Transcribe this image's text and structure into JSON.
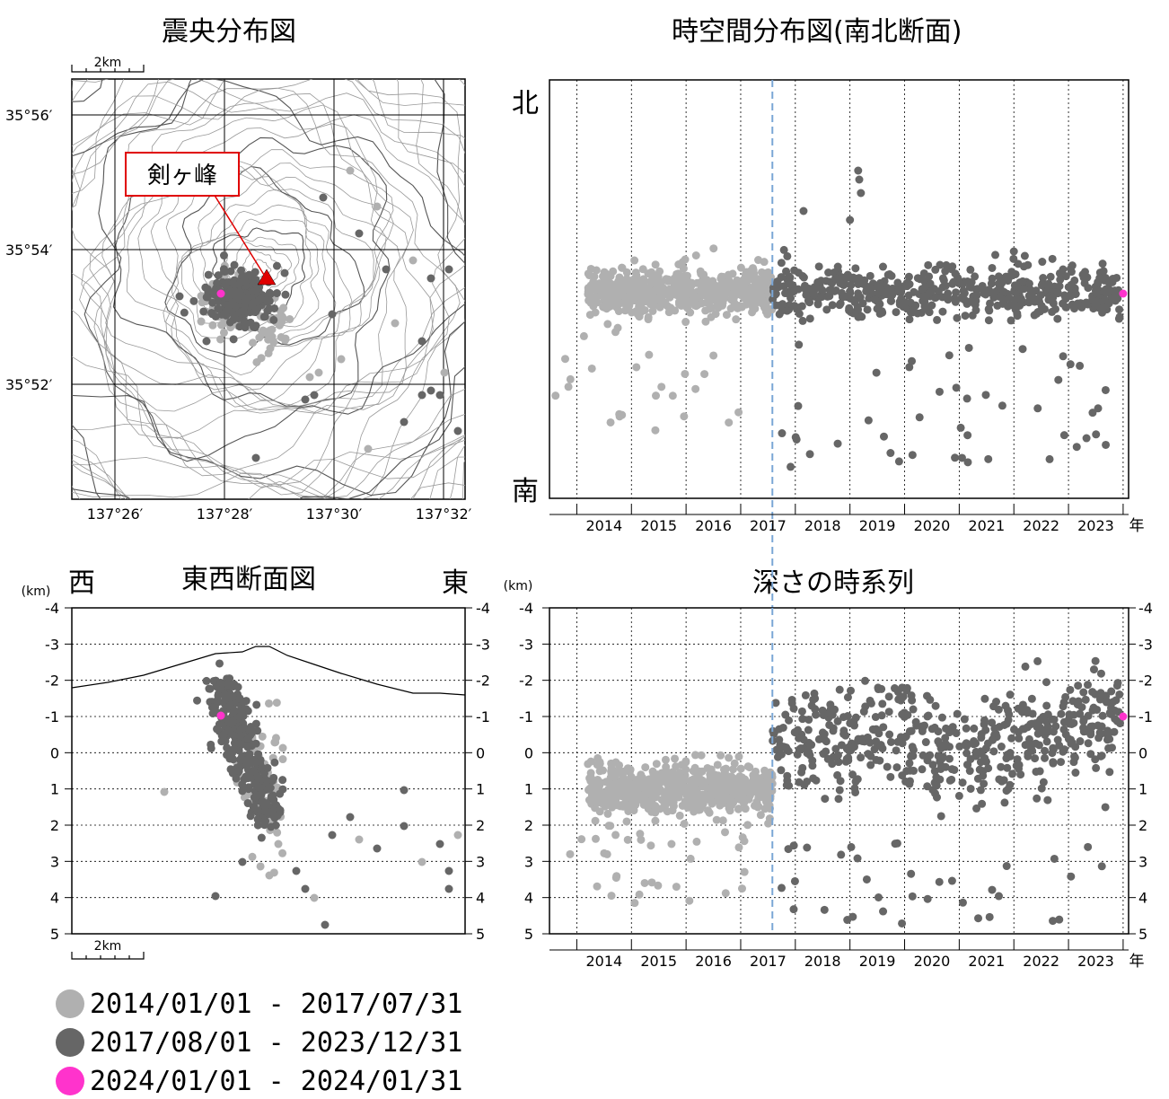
{
  "titles": {
    "epicenter": "震央分布図",
    "spacetime": "時空間分布図(南北断面)",
    "ew_section": "東西断面図",
    "depth_series": "深さの時系列"
  },
  "labels": {
    "north": "北",
    "south": "南",
    "west": "西",
    "east": "東",
    "year_unit": "年",
    "km_unit": "(km)",
    "scale_bar": "2km",
    "peak_name": "剣ヶ峰"
  },
  "colors": {
    "series1": "#b0b0b0",
    "series2": "#666666",
    "series3": "#ff33cc",
    "dashed_line": "#7aa6d6",
    "peak_marker": "#e00000"
  },
  "legend": [
    {
      "label": "2014/01/01 - 2017/07/31",
      "color": "#b0b0b0"
    },
    {
      "label": "2017/08/01 - 2023/12/31",
      "color": "#666666"
    },
    {
      "label": "2024/01/01 - 2024/01/31",
      "color": "#ff33cc"
    }
  ],
  "chart_data": [
    {
      "type": "scatter",
      "title": "震央分布図",
      "lat_ticks": [
        "35°56′",
        "35°54′",
        "35°52′"
      ],
      "lon_ticks": [
        "137°26′",
        "137°28′",
        "137°30′",
        "137°32′"
      ],
      "peak": {
        "name": "剣ヶ峰",
        "lon": 137.4806,
        "lat": 35.8931
      }
    },
    {
      "type": "scatter",
      "title": "時空間分布図(南北断面)",
      "x_ticks": [
        "2014",
        "2015",
        "2016",
        "2017",
        "2018",
        "2019",
        "2020",
        "2021",
        "2022",
        "2023"
      ],
      "xlim": [
        2013.5,
        2024.1
      ],
      "y_top_label": "北",
      "y_bottom_label": "南",
      "reference_date": 2017.58
    },
    {
      "type": "scatter",
      "title": "東西断面図",
      "ylabel": "(km)",
      "y_ticks": [
        "-4",
        "-3",
        "-2",
        "-1",
        "0",
        "1",
        "2",
        "3",
        "4",
        "5"
      ],
      "ylim": [
        -4,
        5
      ],
      "left_label": "西",
      "right_label": "東"
    },
    {
      "type": "scatter",
      "title": "深さの時系列",
      "ylabel": "(km)",
      "x_ticks": [
        "2014",
        "2015",
        "2016",
        "2017",
        "2018",
        "2019",
        "2020",
        "2021",
        "2022",
        "2023"
      ],
      "y_ticks": [
        "-4",
        "-3",
        "-2",
        "-1",
        "0",
        "1",
        "2",
        "3",
        "4",
        "5"
      ],
      "ylim": [
        -4,
        5
      ],
      "xlim": [
        2013.5,
        2024.1
      ],
      "reference_date": 2017.58
    }
  ]
}
